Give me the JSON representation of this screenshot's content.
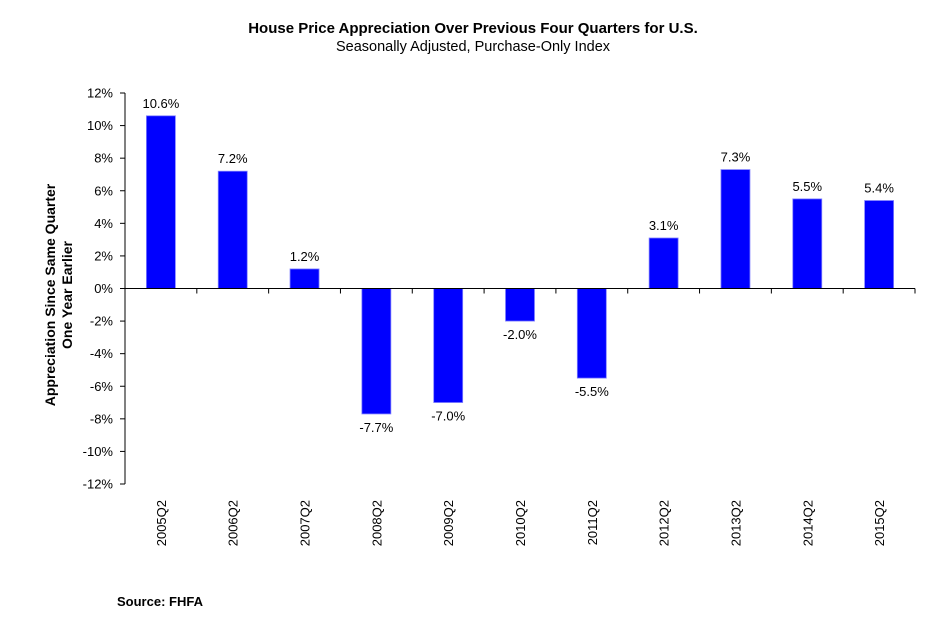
{
  "chart_data": {
    "type": "bar",
    "title": "House Price Appreciation Over Previous Four Quarters for U.S.",
    "subtitle": "Seasonally Adjusted, Purchase-Only Index",
    "xlabel": "",
    "ylabel_lines": [
      "Appreciation Since Same Quarter",
      "One Year Earlier"
    ],
    "ylabel": "Appreciation Since Same Quarter One Year Earlier",
    "categories": [
      "2005Q2",
      "2006Q2",
      "2007Q2",
      "2008Q2",
      "2009Q2",
      "2010Q2",
      "2011Q2",
      "2012Q2",
      "2013Q2",
      "2014Q2",
      "2015Q2"
    ],
    "values": [
      10.6,
      7.2,
      1.2,
      -7.7,
      -7.0,
      -2.0,
      -5.5,
      3.1,
      7.3,
      5.5,
      5.4
    ],
    "data_labels": [
      "10.6%",
      "7.2%",
      "1.2%",
      "-7.7%",
      "-7.0%",
      "-2.0%",
      "-5.5%",
      "3.1%",
      "7.3%",
      "5.5%",
      "5.4%"
    ],
    "ylim": [
      -12,
      12
    ],
    "yticks": [
      12,
      10,
      8,
      6,
      4,
      2,
      0,
      -2,
      -4,
      -6,
      -8,
      -10,
      -12
    ],
    "ytick_labels": [
      "12%",
      "10%",
      "8%",
      "6%",
      "4%",
      "2%",
      "0%",
      "-2%",
      "-4%",
      "-6%",
      "-8%",
      "-10%",
      "-12%"
    ],
    "unit": "%",
    "grid": false,
    "legend": "none",
    "bar_color": "#0000FF",
    "source": "Source:  FHFA"
  }
}
